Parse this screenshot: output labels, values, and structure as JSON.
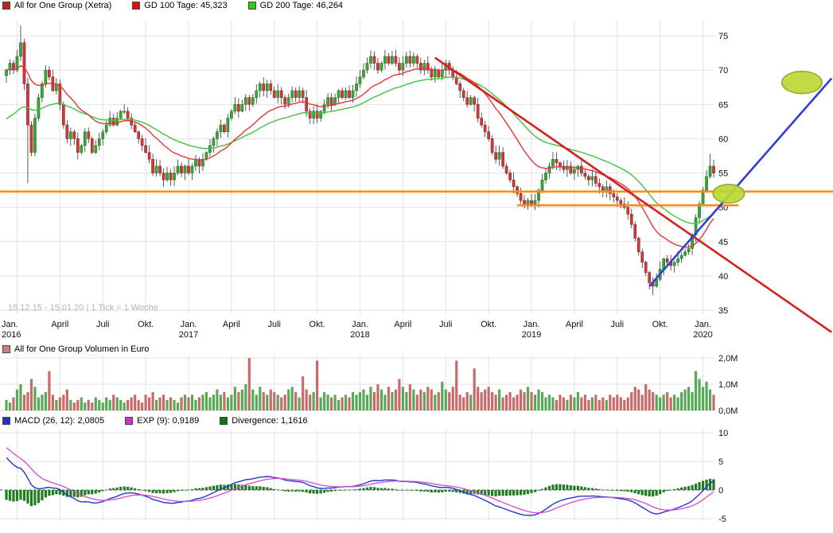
{
  "watermark": "15.12.15 - 15.01.20 | 1 Tick = 1 Woche",
  "legends": {
    "price": [
      {
        "swatch": "#bb2222",
        "label": "All for One Group (Xetra)"
      },
      {
        "swatch": "#dd1111",
        "label": "GD 100 Tage: 45,323"
      },
      {
        "swatch": "#33cc11",
        "label": "GD 200 Tage: 46,264"
      }
    ],
    "volume": [
      {
        "swatch": "#c98080",
        "label": "All for One Group Volumen in Euro"
      }
    ],
    "macd": [
      {
        "swatch": "#2233bb",
        "label": "MACD (26, 12): 2,0805"
      },
      {
        "swatch": "#cc33cc",
        "label": "EXP (9): 0,9189"
      },
      {
        "swatch": "#117711",
        "label": "Divergence: 1,1616"
      }
    ]
  },
  "colors": {
    "candle_up": "#3aa63a",
    "candle_down": "#cc3b3b",
    "gd100": "#e03838",
    "gd200": "#3ec43e",
    "support_orange": "#ff8a1e",
    "trend_red": "#d42020",
    "trend_blue": "#2f3fd4",
    "ellipse_fill": "#bcd832",
    "ellipse_stroke": "#7fa51f",
    "grid": "#e2e2e2",
    "macd_line": "#2438cc",
    "exp_line": "#d24ad2",
    "divergence": "#1f7d1f",
    "volume_up": "#57a957",
    "volume_down": "#c96a6a"
  },
  "chart_data": [
    {
      "type": "candlestick",
      "title": "All for One Group (Xetra)",
      "date_range": "15.12.15 - 15.01.20",
      "tick_note": "1 Tick = 1 Woche",
      "y_axis_side": "right",
      "y_ticks": [
        75,
        70,
        65,
        60,
        55,
        50,
        45,
        40,
        35
      ],
      "ylim": [
        34.5,
        77.5
      ],
      "x_ticks": [
        {
          "week": 3,
          "label": "Jan.",
          "year": "2016",
          "edge": true
        },
        {
          "week": 15,
          "label": "April"
        },
        {
          "week": 27,
          "label": "Juli"
        },
        {
          "week": 39,
          "label": "Okt."
        },
        {
          "week": 51,
          "label": "Jan.",
          "year": "2017"
        },
        {
          "week": 63,
          "label": "April"
        },
        {
          "week": 75,
          "label": "Juli"
        },
        {
          "week": 87,
          "label": "Okt."
        },
        {
          "week": 99,
          "label": "Jan.",
          "year": "2018"
        },
        {
          "week": 111,
          "label": "April"
        },
        {
          "week": 123,
          "label": "Juli"
        },
        {
          "week": 135,
          "label": "Okt."
        },
        {
          "week": 147,
          "label": "Jan.",
          "year": "2019"
        },
        {
          "week": 159,
          "label": "April"
        },
        {
          "week": 171,
          "label": "Juli"
        },
        {
          "week": 183,
          "label": "Okt."
        },
        {
          "week": 195,
          "label": "Jan.",
          "year": "2020"
        }
      ],
      "weekly_closes": [
        70,
        71,
        70,
        72,
        74,
        68,
        62,
        58,
        63,
        66,
        68,
        70,
        69,
        67,
        68,
        65,
        62,
        60,
        61,
        60,
        58,
        59,
        61,
        60,
        58,
        59,
        60,
        61,
        62,
        63,
        62,
        63,
        64,
        64,
        63,
        62,
        61,
        60,
        59,
        58,
        57,
        55,
        56,
        55,
        54,
        55,
        54,
        55,
        56,
        55,
        56,
        55,
        56,
        57,
        56,
        57,
        58,
        59,
        60,
        61,
        62,
        61,
        63,
        64,
        65,
        64,
        65,
        66,
        65,
        66,
        67,
        68,
        67,
        68,
        67,
        66,
        67,
        66,
        65,
        66,
        67,
        66,
        67,
        66,
        64,
        63,
        64,
        63,
        64,
        65,
        66,
        65,
        66,
        67,
        66,
        67,
        66,
        67,
        68,
        69,
        70,
        71,
        72,
        71,
        70,
        71,
        72,
        71,
        72,
        71,
        70,
        71,
        72,
        71,
        72,
        71,
        70,
        71,
        70,
        69,
        70,
        69,
        70,
        71,
        70,
        69,
        68,
        67,
        66,
        65,
        66,
        65,
        63,
        62,
        61,
        60,
        58,
        57,
        58,
        56,
        55,
        54,
        53,
        52,
        51,
        50.5,
        51,
        50.5,
        51,
        52.5,
        54,
        55,
        56,
        57,
        56.5,
        56,
        55.5,
        56,
        55,
        55.5,
        56,
        55,
        54.5,
        54,
        54.5,
        53.5,
        53,
        52.5,
        53,
        52,
        51.5,
        51,
        50.5,
        50,
        49,
        47.5,
        45.5,
        43.5,
        42,
        40.5,
        39,
        38.5,
        39.5,
        41,
        42.5,
        42,
        41.5,
        42,
        42.5,
        43,
        43.5,
        44,
        46,
        48.5,
        50.5,
        52.5,
        54.5,
        56,
        55
      ],
      "wick_overrides": {
        "4": {
          "high": 76.5
        },
        "6": {
          "low": 53.5
        },
        "148": {
          "low": 49.6
        },
        "181": {
          "low": 37.2
        },
        "197": {
          "high": 57.8
        }
      },
      "overlays": {
        "gd100": {
          "label": "GD 100 Tage: 45,323",
          "value": "45,323",
          "weeks": 20,
          "seed": 70,
          "color": "#e03838"
        },
        "gd200": {
          "label": "GD 200 Tage: 46,264",
          "value": "46,264",
          "weeks": 40,
          "seed": 62.5,
          "color": "#3ec43e"
        },
        "support_lines": [
          {
            "price": 52.3,
            "full_width": true
          },
          {
            "price": 50.3,
            "from_week": 143,
            "to_week": 205
          }
        ],
        "trendlines": [
          {
            "name": "downtrend-resistance",
            "color": "#d42020",
            "from": {
              "week": 120,
              "price": 71.8
            },
            "to": {
              "week": 231,
              "price": 31.8
            }
          },
          {
            "name": "uptrend-support",
            "color": "#2f3fd4",
            "from": {
              "week": 180,
              "price": 38.5
            },
            "to": {
              "week": 231,
              "price": 68.8
            }
          }
        ],
        "ellipses": [
          {
            "week": 222.7,
            "price": 68.2,
            "rx_weeks": 5.6,
            "ry_price": 1.62
          },
          {
            "week": 202.2,
            "price": 52.0,
            "rx_weeks": 4.4,
            "ry_price": 1.35
          }
        ]
      }
    },
    {
      "type": "bar",
      "title": "All for One Group Volumen in Euro",
      "y_ticks": [
        "2,0M",
        "1,0M",
        "0,0M"
      ],
      "ylim_millions": [
        0,
        2.2
      ],
      "color_rule": "green if weekly close up, red if down",
      "values_millions": [
        0.4,
        0.3,
        0.5,
        0.8,
        1.0,
        0.6,
        0.7,
        1.2,
        0.9,
        0.5,
        0.6,
        0.7,
        1.5,
        0.6,
        0.4,
        0.5,
        0.6,
        0.8,
        0.4,
        0.3,
        0.4,
        0.5,
        0.3,
        0.4,
        0.3,
        0.5,
        0.4,
        0.3,
        0.5,
        0.4,
        0.6,
        0.5,
        0.4,
        0.3,
        0.4,
        0.5,
        0.6,
        0.4,
        0.3,
        0.6,
        0.5,
        0.7,
        0.4,
        0.5,
        0.6,
        0.4,
        0.5,
        0.4,
        0.3,
        0.5,
        0.6,
        0.5,
        0.6,
        0.4,
        0.5,
        0.6,
        0.7,
        0.5,
        0.6,
        0.8,
        0.6,
        0.7,
        0.5,
        0.6,
        0.9,
        0.7,
        0.8,
        1.0,
        2.0,
        0.8,
        0.6,
        0.9,
        0.7,
        0.6,
        0.8,
        0.7,
        0.6,
        0.5,
        0.6,
        0.8,
        0.9,
        0.7,
        0.5,
        1.3,
        0.8,
        0.6,
        0.7,
        1.9,
        0.5,
        0.7,
        0.6,
        0.5,
        0.6,
        0.4,
        0.5,
        0.6,
        0.5,
        0.7,
        0.6,
        0.7,
        0.8,
        0.6,
        0.9,
        0.7,
        1.0,
        0.8,
        0.6,
        0.9,
        0.7,
        0.8,
        1.2,
        0.9,
        0.7,
        1.0,
        0.8,
        0.6,
        0.8,
        0.7,
        0.9,
        0.8,
        0.6,
        0.7,
        1.1,
        0.8,
        0.7,
        0.9,
        1.9,
        0.6,
        0.5,
        0.7,
        0.6,
        1.6,
        0.9,
        0.7,
        0.8,
        0.9,
        0.7,
        0.6,
        0.8,
        0.5,
        0.6,
        0.7,
        0.5,
        0.6,
        0.8,
        0.7,
        0.9,
        0.7,
        0.6,
        0.8,
        0.7,
        0.5,
        0.6,
        0.5,
        0.4,
        0.6,
        0.5,
        0.4,
        0.6,
        0.5,
        0.7,
        0.5,
        0.6,
        0.4,
        0.5,
        0.6,
        0.4,
        0.5,
        0.4,
        0.6,
        0.5,
        0.6,
        0.5,
        0.4,
        0.5,
        0.7,
        0.9,
        0.8,
        0.6,
        1.0,
        0.8,
        0.7,
        0.6,
        0.5,
        0.6,
        0.7,
        0.5,
        0.6,
        0.5,
        0.7,
        0.8,
        0.9,
        0.7,
        1.5,
        1.2,
        0.9,
        1.1,
        0.8,
        0.6
      ]
    },
    {
      "type": "line",
      "title": "MACD (26, 12) / EXP (9) / Divergence",
      "y_ticks": [
        10,
        5,
        0,
        -5
      ],
      "ylim": [
        -5.5,
        10.5
      ],
      "series": [
        {
          "name": "MACD (26, 12)",
          "current_value": "2,0805",
          "color": "#2438cc",
          "style": "line"
        },
        {
          "name": "EXP (9)",
          "current_value": "0,9189",
          "color": "#d24ad2",
          "style": "line"
        },
        {
          "name": "Divergence",
          "current_value": "1,1616",
          "color": "#1f7d1f",
          "style": "histogram"
        }
      ],
      "derivation": {
        "source": "weekly_closes of price panel",
        "fast": 12,
        "slow": 26,
        "signal": 9,
        "seed": {
          "fast_offset": 4.5,
          "slow_offset": -2.0,
          "signal_start": 7.8
        }
      }
    }
  ]
}
